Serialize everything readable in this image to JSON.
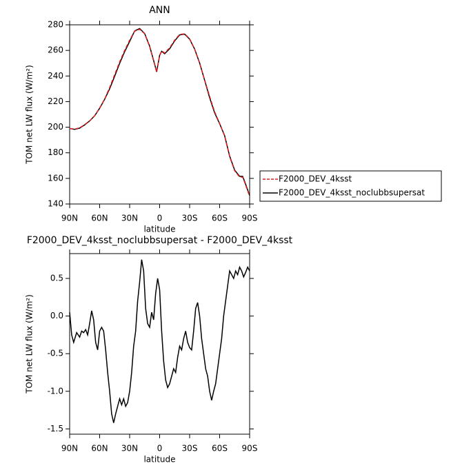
{
  "chart_data": [
    {
      "type": "line",
      "title": "ANN",
      "xlabel": "latitude",
      "ylabel": "TOM net LW flux (W/m²)",
      "x": [
        90,
        85,
        80,
        75,
        70,
        65,
        60,
        55,
        50,
        45,
        40,
        35,
        30,
        25,
        20,
        15,
        10,
        5,
        3,
        0,
        -2,
        -5,
        -10,
        -15,
        -20,
        -25,
        -30,
        -35,
        -40,
        -45,
        -50,
        -55,
        -60,
        -65,
        -70,
        -75,
        -80,
        -83,
        -85,
        -90
      ],
      "series": [
        {
          "name": "F2000_DEV_4ksst",
          "color": "#e41a1c",
          "linestyle": "dashed",
          "values": [
            199,
            198.5,
            199.5,
            202,
            205,
            209,
            215,
            222,
            231,
            241,
            251,
            260,
            268,
            275,
            276.5,
            273,
            263,
            249,
            243,
            256,
            259.5,
            258,
            262,
            268,
            272.5,
            273,
            269,
            261,
            250,
            237,
            224,
            212,
            203,
            193,
            177,
            166,
            161,
            161,
            157,
            146
          ]
        },
        {
          "name": "F2000_DEV_4ksst_noclubbsupersat",
          "color": "#000000",
          "linestyle": "solid",
          "values": [
            199,
            198.3,
            199.3,
            201.8,
            204.9,
            208.9,
            214.8,
            221.8,
            230,
            239.8,
            249.9,
            259,
            267,
            275.2,
            277.1,
            273.2,
            263.3,
            249.2,
            243.3,
            256.2,
            259.3,
            257.4,
            261.3,
            267.4,
            272.1,
            272.7,
            268.8,
            261,
            250.1,
            236.7,
            223,
            211.2,
            202.7,
            193.4,
            177.4,
            166.5,
            161.6,
            161.6,
            157.6,
            146.6
          ]
        }
      ],
      "xlim": [
        90,
        -90
      ],
      "ylim": [
        140,
        280
      ],
      "xticks": [
        {
          "value": 90,
          "label": "90N"
        },
        {
          "value": 60,
          "label": "60N"
        },
        {
          "value": 30,
          "label": "30N"
        },
        0,
        {
          "value": -30,
          "label": "30S"
        },
        {
          "value": -60,
          "label": "60S"
        },
        {
          "value": -90,
          "label": "90S"
        }
      ],
      "yticks": [
        140,
        160,
        180,
        200,
        220,
        240,
        260,
        280
      ],
      "legend": "right"
    },
    {
      "type": "line",
      "title": "F2000_DEV_4ksst_noclubbsupersat - F2000_DEV_4ksst",
      "xlabel": "latitude",
      "ylabel": "TOM net LW flux (W/m²)",
      "x": [
        90,
        88,
        86,
        83,
        80,
        78,
        76,
        74,
        72,
        70,
        68,
        66,
        64,
        62,
        60,
        58,
        56,
        54,
        52,
        50,
        48,
        46,
        44,
        42,
        40,
        38,
        36,
        34,
        32,
        30,
        28,
        26,
        24,
        22,
        20,
        18,
        16,
        14,
        12,
        10,
        8,
        6,
        4,
        2,
        0,
        -2,
        -4,
        -6,
        -8,
        -10,
        -12,
        -14,
        -16,
        -18,
        -20,
        -22,
        -24,
        -26,
        -28,
        -30,
        -32,
        -34,
        -36,
        -38,
        -40,
        -42,
        -44,
        -46,
        -48,
        -50,
        -52,
        -54,
        -56,
        -58,
        -60,
        -62,
        -64,
        -66,
        -68,
        -70,
        -72,
        -74,
        -76,
        -78,
        -80,
        -82,
        -84,
        -86,
        -88,
        -90
      ],
      "color": "#000000",
      "values": [
        0.05,
        -0.25,
        -0.35,
        -0.22,
        -0.28,
        -0.2,
        -0.22,
        -0.18,
        -0.25,
        -0.1,
        0.07,
        -0.05,
        -0.35,
        -0.45,
        -0.2,
        -0.15,
        -0.2,
        -0.45,
        -0.75,
        -1.0,
        -1.3,
        -1.42,
        -1.3,
        -1.2,
        -1.1,
        -1.18,
        -1.1,
        -1.2,
        -1.15,
        -1.0,
        -0.75,
        -0.4,
        -0.2,
        0.2,
        0.45,
        0.75,
        0.6,
        0.1,
        -0.1,
        -0.15,
        0.05,
        -0.05,
        0.3,
        0.5,
        0.35,
        -0.2,
        -0.6,
        -0.85,
        -0.95,
        -0.9,
        -0.8,
        -0.7,
        -0.75,
        -0.55,
        -0.4,
        -0.45,
        -0.3,
        -0.2,
        -0.35,
        -0.42,
        -0.45,
        -0.2,
        0.1,
        0.18,
        0.0,
        -0.3,
        -0.5,
        -0.7,
        -0.8,
        -1.0,
        -1.12,
        -1.0,
        -0.9,
        -0.7,
        -0.5,
        -0.3,
        0.0,
        0.2,
        0.4,
        0.6,
        0.55,
        0.5,
        0.6,
        0.55,
        0.65,
        0.6,
        0.52,
        0.58,
        0.65,
        0.6
      ],
      "xlim": [
        90,
        -90
      ],
      "ylim": [
        -1.57,
        0.83
      ],
      "xticks": [
        {
          "value": 90,
          "label": "90N"
        },
        {
          "value": 60,
          "label": "60N"
        },
        {
          "value": 30,
          "label": "30N"
        },
        0,
        {
          "value": -30,
          "label": "30S"
        },
        {
          "value": -60,
          "label": "60S"
        },
        {
          "value": -90,
          "label": "90S"
        }
      ],
      "yticks": [
        -1.5,
        {
          "value": -1,
          "label": "-1.0"
        },
        -0.5,
        {
          "value": 0,
          "label": "0.0"
        },
        0.5
      ]
    }
  ]
}
